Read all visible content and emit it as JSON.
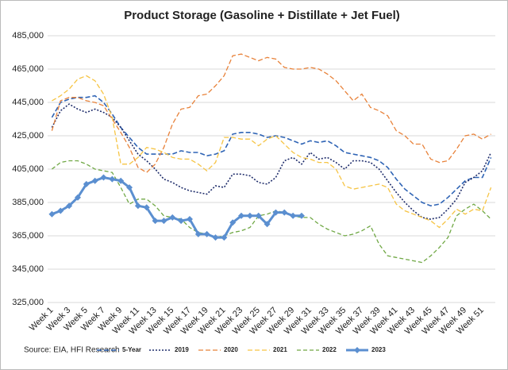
{
  "chart_data": {
    "type": "line",
    "title": "Product Storage (Gasoline + Distillate + Jet Fuel)",
    "source": "Source: EIA, HFI Research",
    "categories": [
      "Week 1",
      null,
      "Week 3",
      null,
      "Week 5",
      null,
      "Week 7",
      null,
      "Week 9",
      null,
      "Week 11",
      null,
      "Week 13",
      null,
      "Week 15",
      null,
      "Week 17",
      null,
      "Week 19",
      null,
      "Week 21",
      null,
      "Week 23",
      null,
      "Week 25",
      null,
      "Week 27",
      null,
      "Week 29",
      null,
      "Week 31",
      null,
      "Week 33",
      null,
      "Week 35",
      null,
      "Week 37",
      null,
      "Week 39",
      null,
      "Week 41",
      null,
      "Week 43",
      null,
      "Week 45",
      null,
      "Week 47",
      null,
      "Week 49",
      null,
      "Week 51",
      null
    ],
    "ylim": [
      325000,
      485000
    ],
    "yticks": [
      {
        "value": 325000,
        "label": "325,000"
      },
      {
        "value": 345000,
        "label": "345,000"
      },
      {
        "value": 365000,
        "label": "365,000"
      },
      {
        "value": 385000,
        "label": "385,000"
      },
      {
        "value": 405000,
        "label": "405,000"
      },
      {
        "value": 425000,
        "label": "425,000"
      },
      {
        "value": 445000,
        "label": "445,000"
      },
      {
        "value": 465000,
        "label": "465,000"
      },
      {
        "value": 485000,
        "label": "485,000"
      }
    ],
    "grid": true,
    "legend": "bottom",
    "series": [
      {
        "name": "5-Year",
        "color": "#2f64b5",
        "values": [
          436000,
          445000,
          447000,
          448000,
          448000,
          449000,
          445000,
          438000,
          430000,
          424000,
          418000,
          414000,
          414000,
          414000,
          414000,
          416000,
          415000,
          415000,
          413000,
          414000,
          416000,
          426000,
          427000,
          427000,
          426000,
          424000,
          425000,
          424000,
          422000,
          420000,
          422000,
          421000,
          422000,
          419000,
          415000,
          414000,
          413000,
          412000,
          410000,
          406000,
          399000,
          393000,
          389000,
          385000,
          383000,
          384000,
          388000,
          393000,
          398000,
          400000,
          400000,
          412000
        ]
      },
      {
        "name": "2019",
        "color": "#1f2d6b",
        "values": [
          430000,
          440000,
          444000,
          441000,
          439000,
          441000,
          439000,
          436000,
          430000,
          422000,
          414000,
          410000,
          405000,
          399000,
          397000,
          394000,
          392000,
          391000,
          390000,
          395000,
          394000,
          402000,
          402000,
          401000,
          397000,
          396000,
          400000,
          410000,
          412000,
          408000,
          415000,
          411000,
          412000,
          409000,
          405000,
          410000,
          410000,
          409000,
          405000,
          398000,
          391000,
          385000,
          380000,
          376000,
          375000,
          376000,
          381000,
          387000,
          397000,
          400000,
          404000,
          415000
        ]
      },
      {
        "name": "2020",
        "color": "#e8823a",
        "values": [
          428000,
          446000,
          448000,
          448000,
          446000,
          445000,
          443000,
          435000,
          427000,
          418000,
          406000,
          403000,
          408000,
          418000,
          432000,
          441000,
          442000,
          449000,
          450000,
          455000,
          461000,
          473000,
          474000,
          472000,
          470000,
          472000,
          471000,
          466000,
          465000,
          465000,
          466000,
          465000,
          462000,
          458000,
          452000,
          446000,
          450000,
          442000,
          440000,
          437000,
          428000,
          425000,
          420000,
          420000,
          411000,
          409000,
          410000,
          417000,
          425000,
          426000,
          423000,
          426000
        ]
      },
      {
        "name": "2021",
        "color": "#f6c443",
        "values": [
          446000,
          449000,
          453000,
          459000,
          461000,
          458000,
          450000,
          436000,
          408000,
          408000,
          412000,
          418000,
          417000,
          415000,
          412000,
          411000,
          411000,
          408000,
          404000,
          409000,
          424000,
          424000,
          423000,
          423000,
          419000,
          423000,
          425000,
          420000,
          415000,
          412000,
          411000,
          409000,
          409000,
          405000,
          395000,
          393000,
          394000,
          395000,
          396000,
          394000,
          384000,
          380000,
          378000,
          376000,
          374000,
          370000,
          375000,
          381000,
          378000,
          381000,
          380000,
          394000
        ]
      },
      {
        "name": "2022",
        "color": "#70a845",
        "values": [
          405000,
          409000,
          410000,
          410000,
          408000,
          405000,
          404000,
          403000,
          394000,
          384000,
          387000,
          387000,
          383000,
          377000,
          376000,
          375000,
          370000,
          367000,
          366000,
          364000,
          365000,
          367000,
          368000,
          370000,
          377000,
          378000,
          380000,
          379000,
          377000,
          376000,
          376000,
          372000,
          369000,
          367000,
          365000,
          366000,
          368000,
          371000,
          360000,
          353000,
          352000,
          351000,
          350000,
          349000,
          353000,
          358000,
          364000,
          377000,
          381000,
          384000,
          380000,
          375000
        ]
      },
      {
        "name": "2023",
        "color": "#5b8fd0",
        "values": [
          378000,
          380000,
          383000,
          388000,
          396000,
          398000,
          400000,
          399000,
          398000,
          394000,
          383000,
          382000,
          374000,
          374000,
          376000,
          374000,
          375000,
          366000,
          366000,
          364000,
          364000,
          373000,
          377000,
          377000,
          377000,
          372000,
          379000,
          379000,
          377000,
          377000,
          null,
          null,
          null,
          null,
          null,
          null,
          null,
          null,
          null,
          null,
          null,
          null,
          null,
          null,
          null,
          null,
          null,
          null,
          null,
          null,
          null,
          null
        ]
      }
    ]
  }
}
